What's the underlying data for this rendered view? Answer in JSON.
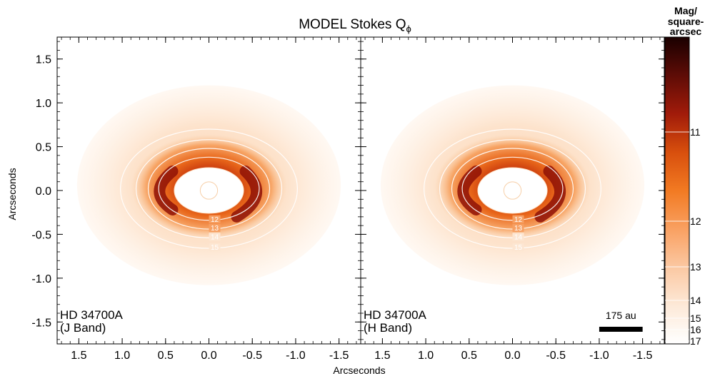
{
  "chart_data": {
    "type": "heatmap",
    "title": "MODEL Stokes Q",
    "title_subscript": "ϕ",
    "xlabel": "Arcseconds",
    "ylabel": "Arcseconds",
    "xlim": [
      1.75,
      -1.75
    ],
    "ylim": [
      -1.75,
      1.75
    ],
    "x_ticks": [
      1.5,
      1.0,
      0.5,
      0.0,
      -0.5,
      -1.0,
      -1.5
    ],
    "x_tick_labels": [
      "1.5",
      "1.0",
      "0.5",
      "0.0",
      "-0.5",
      "-1.0",
      "-1.5"
    ],
    "y_ticks": [
      1.5,
      1.0,
      0.5,
      0.0,
      -0.5,
      -1.0,
      -1.5
    ],
    "y_tick_labels": [
      "1.5",
      "1.0",
      "0.5",
      "0.0",
      "-0.5",
      "-1.0",
      "-1.5"
    ],
    "grid": false,
    "panels": [
      {
        "name": "j-band",
        "target": "HD 34700A",
        "band": "(J Band)",
        "scale_bar": null,
        "contours": [
          {
            "level": 15,
            "label": "15",
            "semi_major": 1.02,
            "semi_minor": 0.68
          },
          {
            "level": 14,
            "label": "14",
            "semi_major": 0.84,
            "semi_minor": 0.56
          },
          {
            "level": 13,
            "label": "13",
            "semi_major": 0.7,
            "semi_minor": 0.46
          },
          {
            "level": 12,
            "label": "12",
            "semi_major": 0.58,
            "semi_minor": 0.36
          }
        ]
      },
      {
        "name": "h-band",
        "target": "HD 34700A",
        "band": "(H Band)",
        "scale_bar": {
          "label": "175 au",
          "length_arcsec": 0.5
        },
        "contours": [
          {
            "level": 15,
            "label": "15",
            "semi_major": 1.02,
            "semi_minor": 0.68
          },
          {
            "level": 14,
            "label": "14",
            "semi_major": 0.84,
            "semi_minor": 0.56
          },
          {
            "level": 13,
            "label": "13",
            "semi_major": 0.7,
            "semi_minor": 0.46
          },
          {
            "level": 12,
            "label": "12",
            "semi_major": 0.58,
            "semi_minor": 0.36
          }
        ]
      }
    ],
    "colorbar": {
      "title_lines": [
        "Mag/",
        "square-",
        "arcsec"
      ],
      "range": [
        17.5,
        9.4
      ],
      "ticks": [
        11,
        12,
        13,
        14,
        15,
        16,
        17
      ],
      "tick_labels": [
        "11",
        "12",
        "13",
        "14",
        "15",
        "16",
        "17"
      ],
      "colors": [
        "#ffffff",
        "#fde9d8",
        "#fbc8a2",
        "#f9a061",
        "#f27a22",
        "#d84f0d",
        "#a11b0a",
        "#5e0c06",
        "#1a0000"
      ]
    }
  }
}
